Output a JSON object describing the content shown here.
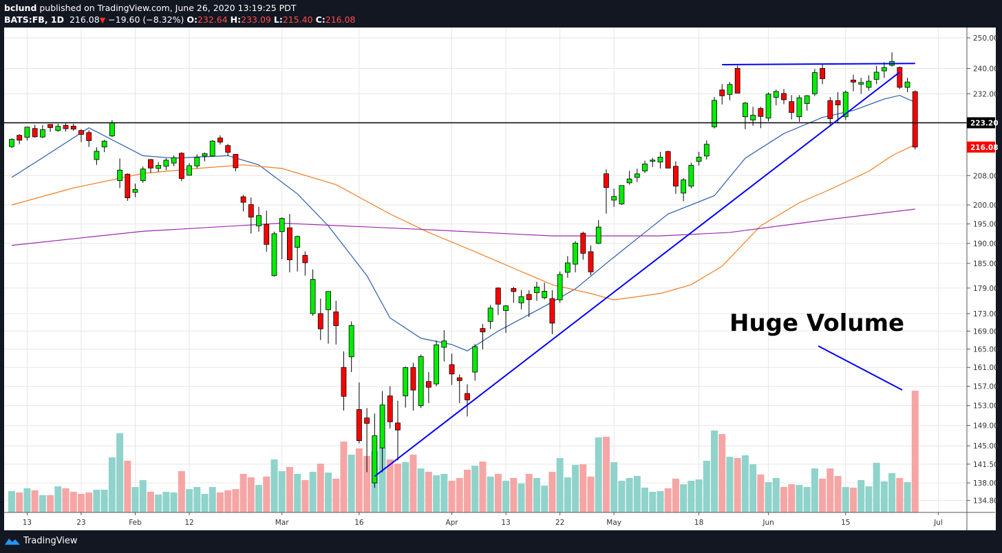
{
  "header": {
    "author": "bclund",
    "published": " published on TradingView.com, June 26, 2020 13:19:25 PDT",
    "symbol": "BATS:FB, 1D",
    "last": "216.08",
    "change": "−19.60 (−8.32%)",
    "o_label": "O:",
    "o": "232.64",
    "h_label": "H:",
    "h": "233.09",
    "l_label": "L:",
    "l": "215.40",
    "c_label": "C:",
    "c": "216.08"
  },
  "footer": {
    "brand": "TradingView"
  },
  "annotation": {
    "text": "Huge Volume"
  },
  "colors": {
    "up": "#00ee00",
    "down": "#ff0000",
    "vol_up": "#8fd3cb",
    "vol_down": "#f6a5a5",
    "ma20": "#2a5ab0",
    "ma50": "#f57c1f",
    "ma200": "#9c27b0",
    "trend": "#0000ff"
  },
  "chart_data": {
    "type": "candlestick",
    "title": "BATS:FB, 1D",
    "yscale": "log",
    "ylim": [
      133,
      253
    ],
    "y_ticks": [
      "250.00",
      "240.00",
      "232.00",
      "208.00",
      "200.00",
      "195.00",
      "190.00",
      "185.00",
      "179.00",
      "173.00",
      "169.00",
      "165.00",
      "161.00",
      "157.00",
      "153.00",
      "149.00",
      "145.00",
      "141.50",
      "138.00",
      "134.80"
    ],
    "x_ticks": [
      {
        "label": "13",
        "i": 2
      },
      {
        "label": "23",
        "i": 9
      },
      {
        "label": "Feb",
        "i": 16
      },
      {
        "label": "12",
        "i": 23
      },
      {
        "label": "Mar",
        "i": 35
      },
      {
        "label": "16",
        "i": 45
      },
      {
        "label": "Apr",
        "i": 57
      },
      {
        "label": "13",
        "i": 64
      },
      {
        "label": "22",
        "i": 71
      },
      {
        "label": "May",
        "i": 78
      },
      {
        "label": "18",
        "i": 89
      },
      {
        "label": "Jun",
        "i": 98
      },
      {
        "label": "15",
        "i": 108
      },
      {
        "label": "Jul",
        "i": 120
      }
    ],
    "price_labels": [
      {
        "label": "223.20",
        "value": 223.2,
        "style": "line"
      },
      {
        "label": "216.08",
        "value": 216.08,
        "style": "last"
      }
    ],
    "ohlc": [
      [
        216.2,
        218.6,
        215.8,
        218.3
      ],
      [
        219.5,
        219.8,
        216.9,
        218.06
      ],
      [
        218.9,
        222.0,
        218.0,
        221.91
      ],
      [
        221.5,
        222.6,
        218.8,
        219.06
      ],
      [
        219.0,
        222.5,
        218.7,
        221.15
      ],
      [
        222.7,
        222.8,
        220.5,
        221.77
      ],
      [
        220.9,
        222.9,
        220.5,
        222.14
      ],
      [
        222.4,
        223.0,
        220.6,
        221.44
      ],
      [
        222.2,
        222.9,
        220.8,
        221.32
      ],
      [
        220.9,
        221.3,
        217.5,
        219.76
      ],
      [
        220.3,
        221.0,
        216.1,
        217.94
      ],
      [
        212.5,
        216.0,
        211.0,
        214.87
      ],
      [
        216.1,
        218.2,
        214.6,
        217.79
      ],
      [
        219.3,
        224.0,
        219.0,
        223.23
      ],
      [
        206.6,
        212.8,
        204.6,
        209.53
      ],
      [
        208.4,
        208.6,
        201.1,
        201.91
      ],
      [
        203.4,
        205.8,
        202.1,
        204.19
      ],
      [
        206.6,
        210.5,
        206.0,
        209.83
      ],
      [
        212.5,
        212.7,
        208.7,
        210.11
      ],
      [
        210.0,
        211.8,
        209.0,
        210.85
      ],
      [
        210.6,
        212.9,
        209.5,
        212.33
      ],
      [
        211.5,
        213.7,
        210.6,
        213.06
      ],
      [
        214.3,
        214.6,
        206.5,
        207.19
      ],
      [
        208.1,
        211.5,
        208.0,
        210.76
      ],
      [
        210.7,
        214.0,
        210.0,
        213.14
      ],
      [
        213.5,
        214.5,
        212.0,
        214.18
      ],
      [
        213.5,
        218.1,
        213.4,
        217.8
      ],
      [
        218.7,
        219.5,
        216.8,
        217.49
      ],
      [
        216.5,
        217.0,
        213.5,
        214.58
      ],
      [
        214.0,
        214.1,
        209.2,
        210.18
      ],
      [
        202.2,
        202.7,
        198.3,
        200.72
      ],
      [
        200.1,
        202.0,
        192.5,
        196.77
      ],
      [
        194.5,
        199.5,
        193.0,
        197.2
      ],
      [
        194.9,
        198.5,
        187.9,
        189.75
      ],
      [
        182.0,
        193.0,
        181.8,
        192.47
      ],
      [
        193.0,
        196.7,
        186.0,
        196.44
      ],
      [
        194.0,
        197.6,
        182.8,
        185.89
      ],
      [
        189.0,
        192.0,
        183.0,
        191.76
      ],
      [
        187.0,
        188.0,
        182.0,
        185.17
      ],
      [
        173.0,
        183.5,
        172.5,
        181.09
      ],
      [
        173.0,
        176.5,
        167.0,
        169.5
      ],
      [
        173.9,
        178.2,
        166.2,
        178.19
      ],
      [
        173.4,
        176.0,
        166.0,
        170.24
      ],
      [
        161.0,
        164.5,
        152.0,
        154.91
      ],
      [
        163.3,
        171.2,
        160.0,
        170.28
      ],
      [
        152.2,
        157.8,
        145.5,
        146.01
      ],
      [
        150.5,
        152.5,
        140.0,
        149.42
      ],
      [
        138.0,
        151.4,
        137.1,
        146.96
      ],
      [
        144.6,
        156.0,
        140.0,
        153.13
      ],
      [
        155.0,
        157.0,
        148.4,
        149.73
      ],
      [
        149.5,
        154.0,
        142.2,
        148.1
      ],
      [
        155.0,
        161.2,
        152.6,
        160.98
      ],
      [
        161.0,
        162.0,
        152.0,
        156.21
      ],
      [
        153.0,
        163.8,
        152.5,
        163.34
      ],
      [
        158.0,
        160.0,
        153.5,
        156.79
      ],
      [
        157.5,
        166.9,
        157.0,
        165.95
      ],
      [
        165.4,
        169.2,
        162.3,
        166.8
      ],
      [
        161.6,
        164.0,
        157.3,
        159.6
      ],
      [
        158.8,
        159.5,
        153.5,
        158.19
      ],
      [
        155.5,
        157.4,
        150.8,
        154.18
      ],
      [
        160.0,
        166.1,
        158.2,
        165.55
      ],
      [
        169.6,
        170.6,
        164.9,
        168.83
      ],
      [
        171.2,
        175.0,
        169.5,
        174.28
      ],
      [
        179.0,
        179.2,
        172.7,
        175.19
      ],
      [
        173.7,
        175.0,
        168.6,
        174.79
      ],
      [
        178.9,
        179.3,
        175.5,
        178.17
      ],
      [
        175.5,
        178.5,
        174.0,
        176.97
      ],
      [
        177.5,
        178.5,
        172.2,
        176.25
      ],
      [
        177.9,
        180.5,
        176.0,
        179.24
      ],
      [
        176.7,
        180.3,
        176.3,
        178.24
      ],
      [
        176.5,
        178.5,
        168.3,
        170.8
      ],
      [
        176.2,
        183.0,
        175.5,
        182.28
      ],
      [
        182.8,
        186.8,
        181.5,
        185.13
      ],
      [
        184.8,
        190.6,
        182.8,
        190.07
      ],
      [
        192.6,
        193.0,
        185.9,
        187.5
      ],
      [
        187.9,
        189.5,
        182.1,
        182.91
      ],
      [
        190.0,
        196.0,
        189.8,
        194.19
      ],
      [
        208.5,
        209.7,
        197.7,
        204.71
      ],
      [
        201.3,
        204.4,
        199.5,
        202.27
      ],
      [
        200.3,
        205.3,
        200.0,
        205.26
      ],
      [
        206.0,
        209.3,
        205.5,
        207.07
      ],
      [
        207.5,
        209.9,
        206.2,
        208.47
      ],
      [
        209.3,
        212.2,
        208.7,
        211.26
      ],
      [
        212.0,
        213.0,
        210.4,
        212.35
      ],
      [
        211.8,
        214.7,
        210.0,
        213.18
      ],
      [
        214.8,
        215.0,
        210.0,
        210.1
      ],
      [
        210.6,
        212.0,
        203.0,
        205.1
      ],
      [
        203.2,
        207.3,
        201.0,
        206.81
      ],
      [
        205.1,
        211.6,
        204.5,
        210.88
      ],
      [
        212.0,
        214.7,
        210.8,
        213.19
      ],
      [
        213.5,
        218.0,
        212.5,
        216.88
      ],
      [
        222.0,
        231.0,
        221.5,
        229.97
      ],
      [
        233.2,
        235.0,
        228.7,
        231.39
      ],
      [
        231.8,
        235.7,
        230.0,
        234.91
      ],
      [
        240.0,
        240.9,
        232.1,
        232.2
      ],
      [
        225.0,
        229.5,
        221.3,
        229.14
      ],
      [
        224.0,
        228.0,
        222.3,
        225.46
      ],
      [
        227.5,
        228.0,
        221.6,
        225.09
      ],
      [
        224.6,
        232.4,
        223.6,
        231.91
      ],
      [
        230.9,
        233.3,
        228.5,
        232.72
      ],
      [
        232.1,
        233.5,
        228.8,
        230.16
      ],
      [
        229.6,
        231.6,
        224.2,
        226.29
      ],
      [
        225.0,
        231.6,
        223.5,
        230.77
      ],
      [
        229.0,
        231.6,
        226.8,
        231.4
      ],
      [
        232.0,
        239.8,
        231.3,
        238.67
      ],
      [
        240.0,
        241.5,
        235.0,
        236.73
      ],
      [
        229.9,
        231.0,
        222.0,
        224.43
      ],
      [
        229.9,
        232.5,
        223.4,
        228.58
      ],
      [
        225.0,
        233.0,
        224.0,
        232.5
      ],
      [
        236.3,
        238.0,
        232.8,
        235.65
      ],
      [
        235.0,
        237.0,
        232.0,
        235.53
      ],
      [
        234.0,
        237.8,
        233.0,
        235.94
      ],
      [
        236.5,
        240.8,
        235.0,
        238.79
      ],
      [
        239.2,
        242.0,
        237.0,
        240.28
      ],
      [
        241.0,
        245.2,
        240.5,
        242.24
      ],
      [
        240.3,
        240.6,
        233.5,
        234.02
      ],
      [
        234.0,
        237.0,
        232.5,
        235.68
      ],
      [
        232.64,
        233.09,
        215.4,
        216.08
      ]
    ],
    "volume_millions": [
      13.3,
      12.5,
      15.1,
      13.8,
      10.8,
      10.8,
      16.3,
      15.1,
      12.9,
      11.6,
      12.5,
      14.2,
      14.2,
      34.4,
      49.5,
      32.3,
      15.9,
      20.2,
      12.9,
      11.2,
      12.9,
      12.5,
      25.8,
      14.6,
      15.9,
      11.6,
      15.9,
      12.5,
      13.8,
      14.6,
      24.1,
      21.9,
      17.2,
      22.4,
      33.1,
      25.8,
      28.4,
      24.1,
      20.2,
      25.4,
      30.5,
      24.9,
      21.1,
      44.3,
      36.1,
      40.0,
      35.3,
      38.3,
      40.4,
      33.1,
      30.5,
      31.4,
      36.1,
      27.5,
      25.4,
      23.2,
      24.1,
      19.8,
      21.5,
      26.7,
      29.2,
      31.8,
      22.4,
      24.1,
      19.8,
      21.5,
      18.1,
      24.1,
      21.5,
      16.8,
      25.4,
      34.0,
      21.9,
      29.7,
      30.1,
      22.4,
      46.9,
      47.3,
      31.4,
      19.8,
      21.5,
      22.8,
      15.5,
      12.9,
      13.3,
      15.1,
      21.1,
      17.6,
      19.8,
      20.6,
      32.3,
      51.2,
      49.0,
      34.8,
      34.0,
      35.7,
      30.1,
      23.7,
      18.9,
      21.5,
      15.9,
      17.6,
      17.2,
      15.9,
      27.5,
      21.1,
      27.5,
      22.8,
      15.9,
      15.5,
      20.2,
      16.3,
      31.0,
      19.4,
      24.5,
      21.5,
      18.9,
      76.1
    ],
    "moving_averages": [
      {
        "name": "MA20",
        "color_key": "ma20",
        "points": [
          [
            0,
            207.5
          ],
          [
            4,
            213
          ],
          [
            10,
            221.7
          ],
          [
            17,
            213.6
          ],
          [
            21,
            212.9
          ],
          [
            28,
            213.6
          ],
          [
            32,
            211
          ],
          [
            37,
            203
          ],
          [
            41,
            194.5
          ],
          [
            46,
            182
          ],
          [
            49,
            172
          ],
          [
            53,
            167.4
          ],
          [
            57,
            166
          ],
          [
            59,
            164.6
          ],
          [
            63,
            169
          ],
          [
            69,
            174.7
          ],
          [
            73,
            178.8
          ],
          [
            77,
            185
          ],
          [
            82,
            192.8
          ],
          [
            85,
            197.6
          ],
          [
            91,
            202.5
          ],
          [
            95,
            212.9
          ],
          [
            100,
            220
          ],
          [
            105,
            224.8
          ],
          [
            109,
            226.9
          ],
          [
            113,
            230.4
          ],
          [
            115,
            231.5
          ],
          [
            117,
            229.4
          ]
        ]
      },
      {
        "name": "MA50",
        "color_key": "ma50",
        "points": [
          [
            0,
            200
          ],
          [
            8,
            204.6
          ],
          [
            17,
            208.6
          ],
          [
            24,
            210
          ],
          [
            30,
            211
          ],
          [
            35,
            210
          ],
          [
            42,
            205.5
          ],
          [
            49,
            197.6
          ],
          [
            54,
            192.8
          ],
          [
            60,
            187.9
          ],
          [
            65,
            183.8
          ],
          [
            70,
            179.8
          ],
          [
            75,
            177.7
          ],
          [
            78,
            176.2
          ],
          [
            84,
            177.7
          ],
          [
            88,
            179.8
          ],
          [
            92,
            184.3
          ],
          [
            97,
            194.5
          ],
          [
            102,
            200.6
          ],
          [
            106,
            204.2
          ],
          [
            111,
            209.2
          ],
          [
            114,
            213.6
          ],
          [
            117,
            216.8
          ]
        ]
      },
      {
        "name": "MA200",
        "color_key": "ma200",
        "points": [
          [
            0,
            189.5
          ],
          [
            17,
            193.1
          ],
          [
            35,
            195.2
          ],
          [
            53,
            193.6
          ],
          [
            70,
            191.9
          ],
          [
            84,
            191.9
          ],
          [
            93,
            192.8
          ],
          [
            106,
            196.2
          ],
          [
            117,
            198.9
          ]
        ]
      }
    ],
    "trendlines": [
      {
        "name": "resistance-line",
        "from": [
          92,
          241.2
        ],
        "to": [
          117,
          241.6
        ]
      },
      {
        "name": "rising-support-line",
        "from": [
          47,
          139.2
        ],
        "to": [
          115,
          238.8
        ]
      }
    ],
    "horizontal_line": 223.2
  }
}
